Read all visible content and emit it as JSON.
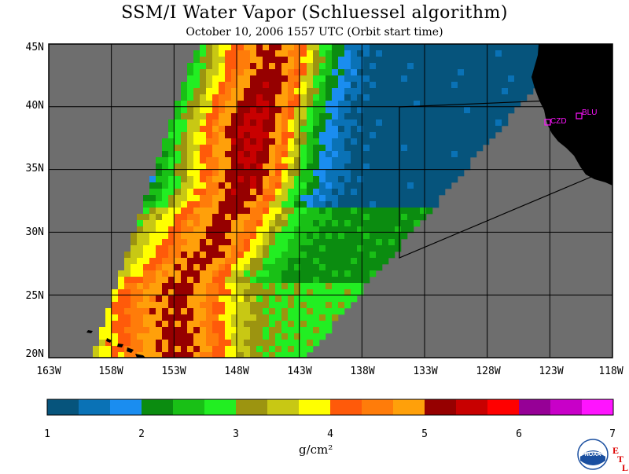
{
  "header": {
    "title": "SSM/I Water Vapor (Schluessel algorithm)",
    "subtitle": "October 10, 2006  1557 UTC  (Orbit start time)"
  },
  "axes": {
    "lat_labels": [
      "45N",
      "40N",
      "35N",
      "30N",
      "25N",
      "20N"
    ],
    "lon_labels": [
      "163W",
      "158W",
      "153W",
      "148W",
      "143W",
      "138W",
      "133W",
      "128W",
      "123W",
      "118W"
    ]
  },
  "stations": [
    {
      "id": "CZD",
      "label": "CZD"
    },
    {
      "id": "BLU",
      "label": "BLU"
    }
  ],
  "colorbar": {
    "tick_labels": [
      "1",
      "2",
      "3",
      "4",
      "5",
      "6",
      "7"
    ],
    "units": "g/cm²",
    "colors": [
      "#06547c",
      "#0a72b6",
      "#1a8df0",
      "#0b8c10",
      "#19c016",
      "#22ee22",
      "#9c9410",
      "#c8c814",
      "#ffff00",
      "#ff5a0a",
      "#ff7c0a",
      "#ffa00a",
      "#960000",
      "#c80000",
      "#ff0000",
      "#960096",
      "#c800c8",
      "#ff14ff"
    ]
  },
  "map_colors": {
    "land": "#000000",
    "no_data": "#6e6e6e",
    "station_marker": "#ff14ff"
  },
  "logos": {
    "noaa_text": "NOAA",
    "etl_letters": [
      "E",
      "T",
      "L"
    ]
  },
  "chart_data": {
    "type": "heatmap",
    "title": "SSM/I Water Vapor (Schluessel algorithm)",
    "subtitle": "October 10, 2006  1557 UTC  (Orbit start time)",
    "lon_range": [
      -163,
      -118
    ],
    "lat_range": [
      20,
      45
    ],
    "colorbar_range": [
      1,
      7
    ],
    "colorbar_units": "g/cm²",
    "grid": true,
    "swath_ridge": [
      {
        "lon": -152.5,
        "lat": 25.8,
        "value": 5.1
      },
      {
        "lon": -150.5,
        "lat": 27.8,
        "value": 5.1
      },
      {
        "lon": -148.5,
        "lat": 31.3,
        "value": 5.1
      },
      {
        "lon": -147.0,
        "lat": 33.8,
        "value": 5.3
      },
      {
        "lon": -146.5,
        "lat": 38.3,
        "value": 5.5
      },
      {
        "lon": -145.0,
        "lat": 43.5,
        "value": 5.1
      }
    ]
  }
}
